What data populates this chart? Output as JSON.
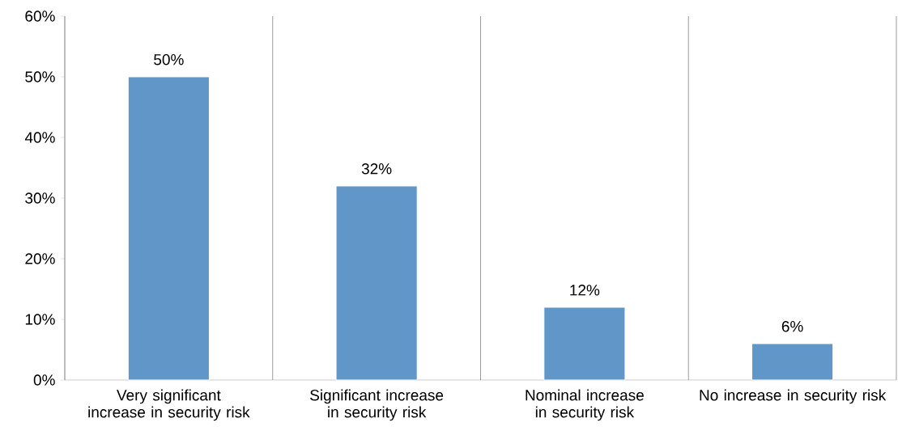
{
  "chart_data": {
    "type": "bar",
    "categories": [
      "Very significant increase in security risk",
      "Significant increase in security risk",
      "Nominal increase in security risk",
      "No increase in security risk"
    ],
    "values": [
      50,
      32,
      12,
      6
    ],
    "value_labels": [
      "50%",
      "32%",
      "12%",
      "6%"
    ],
    "color": "#6096c8",
    "ylim": [
      0,
      60
    ],
    "yticks": [
      {
        "value": 0,
        "label": "0%"
      },
      {
        "value": 10,
        "label": "10%"
      },
      {
        "value": 20,
        "label": "20%"
      },
      {
        "value": 30,
        "label": "30%"
      },
      {
        "value": 40,
        "label": "40%"
      },
      {
        "value": 50,
        "label": "50%"
      },
      {
        "value": 60,
        "label": "60%"
      }
    ],
    "grid": "x"
  }
}
